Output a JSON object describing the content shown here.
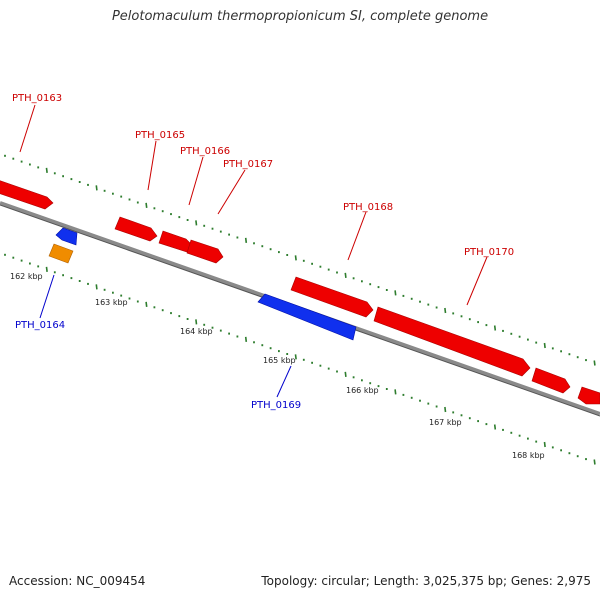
{
  "title": "Pelotomaculum thermopropionicum SI, complete genome",
  "footer": {
    "accession": "Accession: NC_009454",
    "summary": "Topology: circular; Length: 3,025,375 bp; Genes: 2,975"
  },
  "colors": {
    "forward_gene": "#ee0000",
    "reverse_gene": "#0000ee",
    "other_feature": "#f08c00",
    "backbone": "#888888",
    "tick": "#2e7d2e",
    "forward_label": "#cc0000",
    "reverse_label": "#0000cc"
  },
  "scale_labels": [
    "162 kbp",
    "163 kbp",
    "164 kbp",
    "165 kbp",
    "166 kbp",
    "167 kbp",
    "168 kbp"
  ],
  "genes": {
    "forward": [
      "PTH_0163",
      "PTH_0165",
      "PTH_0166",
      "PTH_0167",
      "PTH_0168",
      "PTH_0170"
    ],
    "reverse": [
      "PTH_0164",
      "PTH_0169"
    ]
  }
}
